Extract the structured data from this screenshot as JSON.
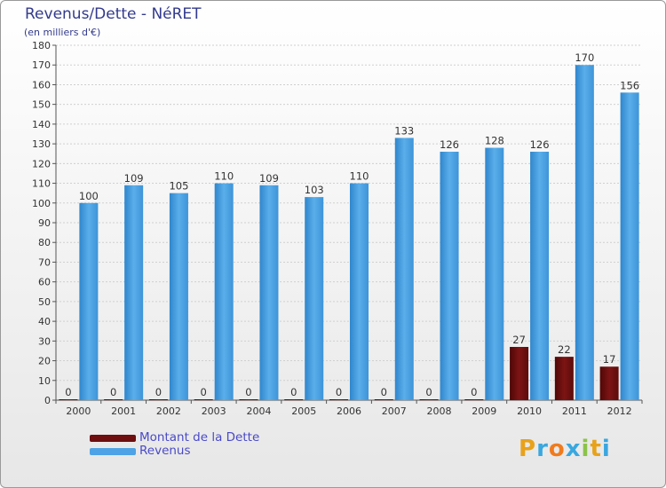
{
  "title": "Revenus/Dette - NéRET",
  "subtitle": "(en milliers d'€)",
  "chart_data": {
    "type": "bar",
    "categories": [
      "2000",
      "2001",
      "2002",
      "2003",
      "2004",
      "2005",
      "2006",
      "2007",
      "2008",
      "2009",
      "2010",
      "2011",
      "2012"
    ],
    "series": [
      {
        "name": "Montant de la Dette",
        "color": "#6e0e0e",
        "values": [
          0,
          0,
          0,
          0,
          0,
          0,
          0,
          0,
          0,
          0,
          27,
          22,
          17
        ]
      },
      {
        "name": "Revenus",
        "color": "#4da3e6",
        "values": [
          100,
          109,
          105,
          110,
          109,
          103,
          110,
          133,
          126,
          128,
          126,
          170,
          156
        ]
      }
    ],
    "yticks": [
      0,
      10,
      20,
      30,
      40,
      50,
      60,
      70,
      80,
      90,
      100,
      110,
      120,
      130,
      140,
      150,
      160,
      170,
      180
    ],
    "ylim": [
      0,
      180
    ],
    "grid": true
  },
  "legend": {
    "items": [
      {
        "label": "Montant de la Dette",
        "color": "#6e0e0e"
      },
      {
        "label": "Revenus",
        "color": "#4da3e6"
      }
    ]
  },
  "logo": {
    "text": "Proxiti",
    "letters": [
      {
        "ch": "P",
        "color": "#e8a21a"
      },
      {
        "ch": "r",
        "color": "#3aa7df"
      },
      {
        "ch": "o",
        "color": "#f07b1e"
      },
      {
        "ch": "x",
        "color": "#3aa7df"
      },
      {
        "ch": "i",
        "color": "#8bc34a"
      },
      {
        "ch": "t",
        "color": "#e8a21a"
      },
      {
        "ch": "i",
        "color": "#3aa7df"
      }
    ]
  }
}
